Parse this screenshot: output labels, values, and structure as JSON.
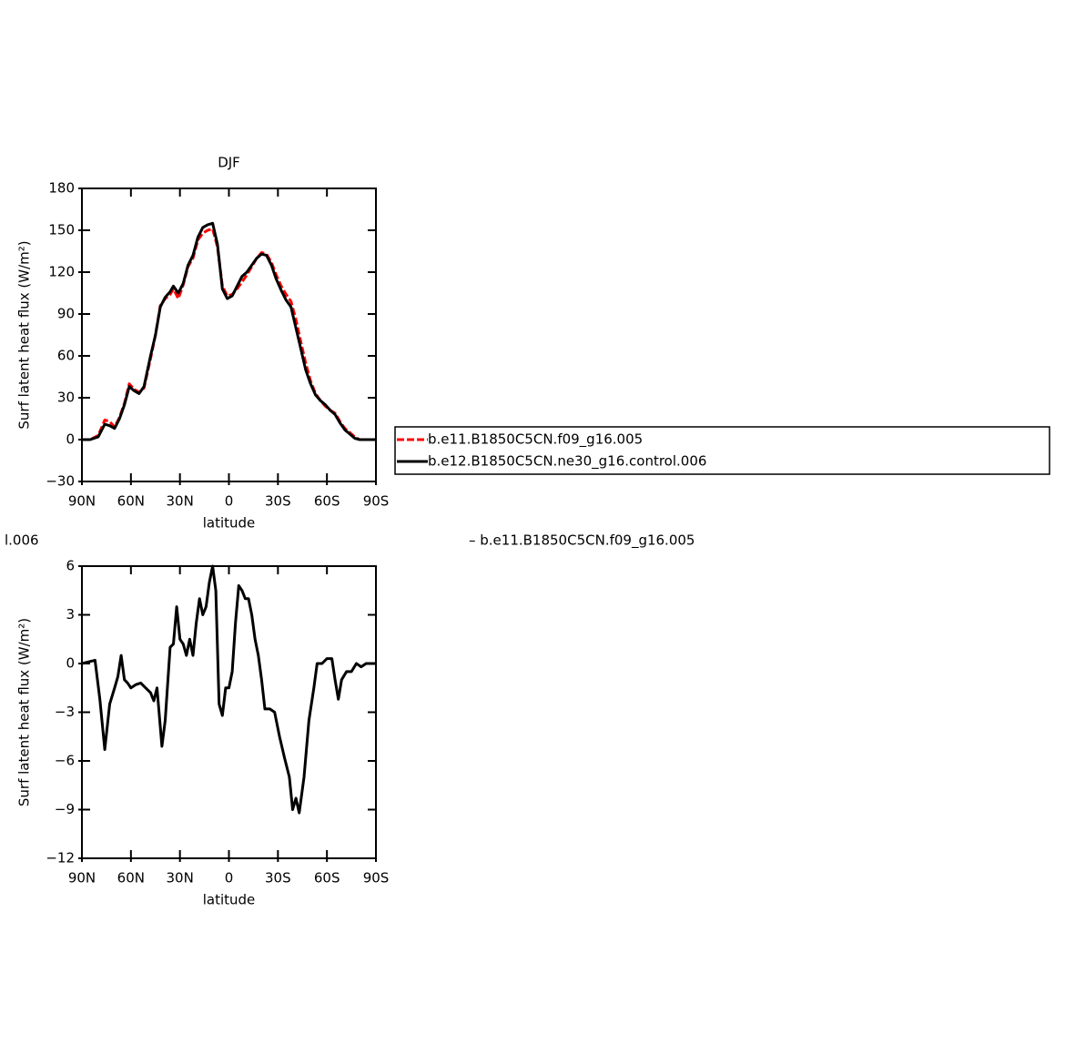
{
  "chart_data": [
    {
      "type": "line",
      "title": "DJF",
      "xlabel": "latitude",
      "ylabel": "Surf latent heat flux (W/m²)",
      "x": [
        90,
        85,
        80,
        76,
        73,
        70,
        67,
        64,
        61,
        58,
        55,
        52,
        48,
        45,
        42,
        39,
        36,
        34,
        31,
        28,
        25,
        22,
        19,
        16,
        13,
        10,
        7,
        4,
        1,
        -2,
        -5,
        -8,
        -11,
        -14,
        -17,
        -20,
        -23,
        -26,
        -29,
        -32,
        -35,
        -38,
        -41,
        -44,
        -47,
        -50,
        -53,
        -56,
        -59,
        -62,
        -65,
        -68,
        -71,
        -74,
        -77,
        -80,
        -85,
        -90
      ],
      "series": [
        {
          "name": "b.e11.B1850C5CN.f09_g16.005",
          "color": "#ff0000",
          "dash": "dashed",
          "values": [
            0,
            0,
            3,
            14,
            13,
            9,
            16,
            26,
            40,
            36,
            34,
            37,
            58,
            75,
            96,
            101,
            104,
            108,
            101,
            111,
            124,
            130,
            143,
            148,
            150,
            151,
            138,
            110,
            103,
            104,
            108,
            113,
            118,
            124,
            130,
            134,
            133,
            127,
            118,
            110,
            104,
            99,
            86,
            70,
            55,
            42,
            33,
            28,
            24,
            21,
            19,
            13,
            8,
            5,
            2,
            0,
            0,
            0
          ]
        },
        {
          "name": "b.e12.B1850C5CN.ne30_g16.control.006",
          "color": "#000000",
          "dash": "solid",
          "values": [
            0,
            0,
            2,
            11,
            10,
            8,
            15,
            25,
            38,
            35,
            33,
            38,
            60,
            75,
            95,
            102,
            106,
            110,
            105,
            112,
            125,
            132,
            145,
            152,
            154,
            155,
            140,
            108,
            101,
            103,
            110,
            117,
            120,
            125,
            130,
            133,
            132,
            125,
            115,
            107,
            100,
            95,
            80,
            65,
            50,
            40,
            32,
            28,
            25,
            21,
            18,
            12,
            7,
            4,
            1,
            0,
            0,
            0
          ]
        }
      ],
      "xlim": [
        90,
        -90
      ],
      "xticks": [
        {
          "value": 90,
          "label": "90N"
        },
        {
          "value": 60,
          "label": "60N"
        },
        {
          "value": 30,
          "label": "30N"
        },
        0,
        {
          "value": -30,
          "label": "30S"
        },
        {
          "value": -60,
          "label": "60S"
        },
        {
          "value": -90,
          "label": "90S"
        }
      ],
      "ylim": [
        -30,
        180
      ],
      "yticks": [
        {
          "value": -30,
          "label": "−30"
        },
        0,
        30,
        60,
        90,
        120,
        150,
        180
      ],
      "legend": "right"
    },
    {
      "type": "line",
      "xlabel": "latitude",
      "ylabel": "Surf latent heat flux (W/m²)",
      "annotations": [
        "l.006",
        "– b.e11.B1850C5CN.f09_g16.005"
      ],
      "x": [
        90,
        86,
        82,
        79,
        76,
        73,
        70,
        68,
        66,
        64,
        62,
        60,
        57,
        54,
        51,
        48,
        46,
        44,
        41,
        39,
        36,
        34,
        32,
        30,
        28,
        26,
        24,
        22,
        20,
        18,
        16,
        14,
        12,
        10,
        8,
        6,
        4,
        2,
        0,
        -2,
        -4,
        -6,
        -8,
        -10,
        -12,
        -14,
        -16,
        -18,
        -20,
        -22,
        -25,
        -28,
        -31,
        -34,
        -37,
        -39,
        -41,
        -43,
        -46,
        -49,
        -52,
        -54,
        -57,
        -60,
        -63,
        -65,
        -67,
        -69,
        -72,
        -75,
        -78,
        -81,
        -84,
        -87,
        -90
      ],
      "series": [
        {
          "color": "#000000",
          "dash": "solid",
          "values": [
            0,
            0.1,
            0.2,
            -2.2,
            -5.3,
            -2.5,
            -1.5,
            -0.8,
            0.5,
            -1,
            -1.2,
            -1.5,
            -1.3,
            -1.2,
            -1.5,
            -1.8,
            -2.3,
            -1.5,
            -5.1,
            -3.5,
            1,
            1.2,
            3.5,
            1.5,
            1.2,
            0.5,
            1.5,
            0.5,
            2.5,
            4,
            3,
            3.5,
            5,
            6,
            4.5,
            -2.5,
            -3.2,
            -1.5,
            -1.5,
            -0.5,
            2.5,
            4.8,
            4.5,
            4,
            4,
            3,
            1.5,
            0.5,
            -1,
            -2.8,
            -2.8,
            -3,
            -4.5,
            -5.8,
            -7,
            -9,
            -8.3,
            -9.2,
            -7,
            -3.5,
            -1.5,
            0,
            0,
            0.3,
            0.3,
            -1,
            -2.2,
            -1,
            -0.5,
            -0.5,
            0,
            -0.2,
            0,
            0,
            0
          ]
        }
      ],
      "xlim": [
        90,
        -90
      ],
      "xticks": [
        {
          "value": 90,
          "label": "90N"
        },
        {
          "value": 60,
          "label": "60N"
        },
        {
          "value": 30,
          "label": "30N"
        },
        0,
        {
          "value": -30,
          "label": "30S"
        },
        {
          "value": -60,
          "label": "60S"
        },
        {
          "value": -90,
          "label": "90S"
        }
      ],
      "ylim": [
        -12,
        6
      ],
      "yticks": [
        {
          "value": -12,
          "label": "−12"
        },
        {
          "value": -9,
          "label": "−9"
        },
        {
          "value": -6,
          "label": "−6"
        },
        {
          "value": -3,
          "label": "−3"
        },
        0,
        3,
        6
      ]
    }
  ]
}
